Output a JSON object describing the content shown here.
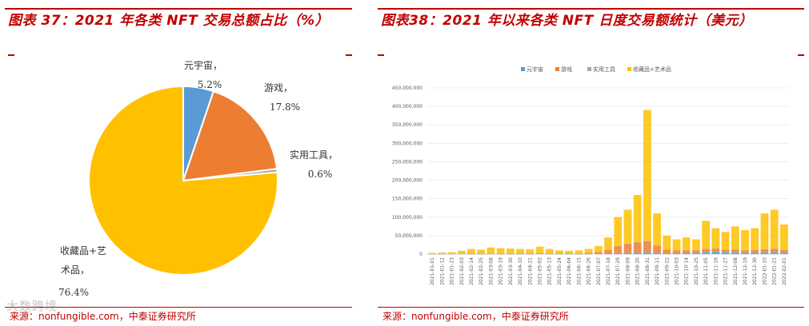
{
  "left_panel": {
    "title": "图表 37：2021  年各类 NFT  交易总额占比（%）",
    "source": "来源：nonfungible.com，中泰证券研究所"
  },
  "right_panel": {
    "title": "图表38：2021 年以来各类 NFT 日度交易额统计（美元）",
    "source": "来源：nonfungible.com，中泰证券研究所"
  },
  "watermark": "大数跨境",
  "colors": {
    "brand_red": "#c00000",
    "metaverse": "#5b9bd5",
    "gaming": "#ed7d31",
    "utility": "#a5a5a5",
    "collectibles": "#ffc000"
  },
  "chart_data": [
    {
      "type": "pie",
      "title": "2021 年各类 NFT 交易总额占比（%）",
      "slices": [
        {
          "name": "元宇宙",
          "value": 5.2,
          "value_label": "5.2%"
        },
        {
          "name": "游戏",
          "value": 17.8,
          "value_label": "17.8%"
        },
        {
          "name": "实用工具",
          "value": 0.6,
          "value_label": "0.6%"
        },
        {
          "name": "收藏品+艺术品",
          "value": 76.4,
          "value_label": "76.4%"
        }
      ]
    },
    {
      "type": "bar",
      "stacked": true,
      "title": "2021 年以来各类 NFT 日度交易额统计（美元）",
      "legend": [
        "元宇宙",
        "游戏",
        "实用工具",
        "收藏品+艺术品"
      ],
      "legend_position": "top",
      "ylim": [
        0,
        450000000
      ],
      "y_ticks": [
        "0",
        "50,000,000",
        "100,000,000",
        "150,000,000",
        "200,000,000",
        "250,000,000",
        "300,000,000",
        "350,000,000",
        "400,000,000",
        "450,000,000"
      ],
      "x_tick_labels": [
        "2021-01-01",
        "2021-01-12",
        "2021-01-23",
        "2021-02-03",
        "2021-02-14",
        "2021-02-25",
        "2021-03-08",
        "2021-03-19",
        "2021-03-30",
        "2021-04-10",
        "2021-04-21",
        "2021-05-02",
        "2021-05-13",
        "2021-05-24",
        "2021-06-04",
        "2021-06-15",
        "2021-06-26",
        "2021-07-07",
        "2021-07-18",
        "2021-07-29",
        "2021-08-09",
        "2021-08-20",
        "2021-08-31",
        "2021-09-11",
        "2021-09-22",
        "2021-10-03",
        "2021-10-14",
        "2021-10-25",
        "2021-11-05",
        "2021-11-16",
        "2021-11-27",
        "2021-12-08",
        "2021-12-19",
        "2021-12-30",
        "2022-01-10",
        "2022-01-21",
        "2022-02-01"
      ],
      "series_total_approx": [
        3000000,
        4000000,
        5000000,
        9000000,
        14000000,
        12000000,
        18000000,
        16000000,
        15000000,
        14000000,
        13000000,
        20000000,
        14000000,
        10000000,
        9000000,
        10000000,
        14000000,
        22000000,
        45000000,
        100000000,
        120000000,
        160000000,
        390000000,
        110000000,
        50000000,
        40000000,
        45000000,
        40000000,
        90000000,
        70000000,
        60000000,
        75000000,
        65000000,
        70000000,
        110000000,
        120000000,
        80000000
      ],
      "series": [
        {
          "name": "元宇宙",
          "values": [
            0,
            0,
            0,
            0,
            200000,
            100000,
            300000,
            200000,
            200000,
            100000,
            100000,
            500000,
            200000,
            100000,
            100000,
            100000,
            300000,
            500000,
            1000000,
            2000000,
            3000000,
            4000000,
            5000000,
            3000000,
            2000000,
            2000000,
            3000000,
            4000000,
            6000000,
            8000000,
            6000000,
            5000000,
            4000000,
            4000000,
            5000000,
            5000000,
            4000000
          ]
        },
        {
          "name": "游戏",
          "values": [
            100000,
            200000,
            300000,
            500000,
            800000,
            700000,
            1000000,
            900000,
            900000,
            1000000,
            1000000,
            1500000,
            1200000,
            1000000,
            1000000,
            1500000,
            3000000,
            5000000,
            10000000,
            20000000,
            25000000,
            28000000,
            30000000,
            20000000,
            10000000,
            8000000,
            7000000,
            6000000,
            8000000,
            7000000,
            6000000,
            7000000,
            6000000,
            7000000,
            8000000,
            9000000,
            7000000
          ]
        },
        {
          "name": "实用工具",
          "values": [
            0,
            0,
            0,
            0,
            0,
            0,
            0,
            0,
            0,
            0,
            0,
            0,
            0,
            0,
            0,
            0,
            0,
            0,
            200000,
            300000,
            400000,
            500000,
            600000,
            300000,
            200000,
            200000,
            200000,
            200000,
            300000,
            300000,
            200000,
            200000,
            200000,
            200000,
            300000,
            300000,
            200000
          ]
        },
        {
          "name": "收藏品+艺术品",
          "values": [
            2900000,
            3800000,
            4700000,
            8500000,
            13000000,
            11200000,
            16700000,
            14900000,
            13900000,
            12900000,
            11900000,
            18000000,
            12600000,
            8900000,
            7900000,
            8400000,
            10700000,
            16500000,
            33800000,
            77700000,
            91600000,
            127500000,
            354400000,
            86700000,
            37800000,
            29800000,
            34800000,
            29800000,
            75700000,
            54700000,
            47800000,
            62800000,
            54800000,
            58800000,
            96700000,
            105700000,
            68800000
          ]
        }
      ]
    }
  ]
}
